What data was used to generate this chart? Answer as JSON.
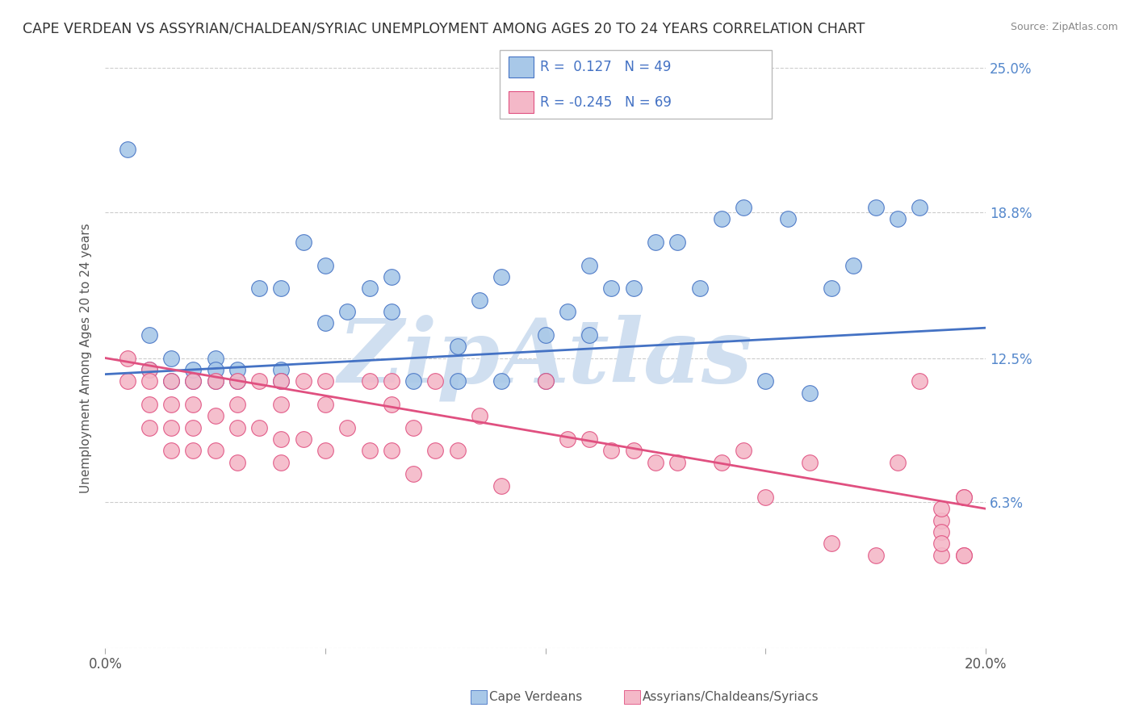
{
  "title": "CAPE VERDEAN VS ASSYRIAN/CHALDEAN/SYRIAC UNEMPLOYMENT AMONG AGES 20 TO 24 YEARS CORRELATION CHART",
  "source": "Source: ZipAtlas.com",
  "ylabel": "Unemployment Among Ages 20 to 24 years",
  "xlim": [
    0.0,
    0.2
  ],
  "ylim": [
    0.0,
    0.25
  ],
  "yticks": [
    0.0,
    0.063,
    0.125,
    0.188,
    0.25
  ],
  "ytick_labels": [
    "",
    "6.3%",
    "12.5%",
    "18.8%",
    "25.0%"
  ],
  "xticks": [
    0.0,
    0.05,
    0.1,
    0.15,
    0.2
  ],
  "xtick_labels": [
    "0.0%",
    "",
    "",
    "",
    "20.0%"
  ],
  "legend_r1": "R =  0.127   N = 49",
  "legend_r2": "R = -0.245   N = 69",
  "legend_label1": "Cape Verdeans",
  "legend_label2": "Assyrians/Chaldeans/Syriacs",
  "color_blue": "#a8c8e8",
  "color_pink": "#f4b8c8",
  "color_line_blue": "#4472c4",
  "color_line_pink": "#e05080",
  "watermark": "ZipAtlas",
  "watermark_color": "#d0dff0",
  "background_color": "#ffffff",
  "grid_color": "#cccccc",
  "blue_scatter_x": [
    0.005,
    0.01,
    0.01,
    0.015,
    0.015,
    0.02,
    0.02,
    0.025,
    0.025,
    0.025,
    0.03,
    0.03,
    0.035,
    0.04,
    0.04,
    0.04,
    0.045,
    0.05,
    0.05,
    0.055,
    0.06,
    0.065,
    0.065,
    0.07,
    0.08,
    0.08,
    0.085,
    0.09,
    0.09,
    0.1,
    0.1,
    0.105,
    0.11,
    0.11,
    0.115,
    0.12,
    0.125,
    0.13,
    0.135,
    0.14,
    0.145,
    0.15,
    0.155,
    0.16,
    0.165,
    0.17,
    0.175,
    0.18,
    0.185
  ],
  "blue_scatter_y": [
    0.215,
    0.135,
    0.12,
    0.115,
    0.125,
    0.115,
    0.12,
    0.125,
    0.115,
    0.12,
    0.115,
    0.12,
    0.155,
    0.155,
    0.12,
    0.115,
    0.175,
    0.14,
    0.165,
    0.145,
    0.155,
    0.16,
    0.145,
    0.115,
    0.115,
    0.13,
    0.15,
    0.16,
    0.115,
    0.115,
    0.135,
    0.145,
    0.165,
    0.135,
    0.155,
    0.155,
    0.175,
    0.175,
    0.155,
    0.185,
    0.19,
    0.115,
    0.185,
    0.11,
    0.155,
    0.165,
    0.19,
    0.185,
    0.19
  ],
  "pink_scatter_x": [
    0.005,
    0.005,
    0.01,
    0.01,
    0.01,
    0.01,
    0.015,
    0.015,
    0.015,
    0.015,
    0.02,
    0.02,
    0.02,
    0.02,
    0.025,
    0.025,
    0.025,
    0.03,
    0.03,
    0.03,
    0.03,
    0.035,
    0.035,
    0.04,
    0.04,
    0.04,
    0.04,
    0.045,
    0.045,
    0.05,
    0.05,
    0.05,
    0.055,
    0.06,
    0.06,
    0.065,
    0.065,
    0.065,
    0.07,
    0.07,
    0.075,
    0.075,
    0.08,
    0.085,
    0.09,
    0.1,
    0.105,
    0.11,
    0.115,
    0.12,
    0.125,
    0.13,
    0.14,
    0.145,
    0.15,
    0.16,
    0.165,
    0.175,
    0.18,
    0.185,
    0.19,
    0.19,
    0.195,
    0.195,
    0.19,
    0.19,
    0.19,
    0.195,
    0.195
  ],
  "pink_scatter_y": [
    0.115,
    0.125,
    0.12,
    0.115,
    0.105,
    0.095,
    0.115,
    0.105,
    0.095,
    0.085,
    0.115,
    0.105,
    0.095,
    0.085,
    0.115,
    0.1,
    0.085,
    0.115,
    0.105,
    0.095,
    0.08,
    0.115,
    0.095,
    0.115,
    0.105,
    0.09,
    0.08,
    0.115,
    0.09,
    0.115,
    0.105,
    0.085,
    0.095,
    0.115,
    0.085,
    0.115,
    0.105,
    0.085,
    0.095,
    0.075,
    0.115,
    0.085,
    0.085,
    0.1,
    0.07,
    0.115,
    0.09,
    0.09,
    0.085,
    0.085,
    0.08,
    0.08,
    0.08,
    0.085,
    0.065,
    0.08,
    0.045,
    0.04,
    0.08,
    0.115,
    0.04,
    0.055,
    0.065,
    0.065,
    0.06,
    0.05,
    0.045,
    0.04,
    0.04
  ],
  "blue_trend_y_start": 0.118,
  "blue_trend_y_end": 0.138,
  "pink_trend_y_start": 0.125,
  "pink_trend_y_end": 0.06
}
